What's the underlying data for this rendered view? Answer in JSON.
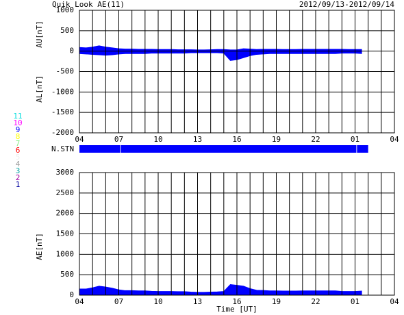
{
  "header": {
    "title": "Quik Look AE(11)",
    "date_range": "2012/09/13-2012/09/14"
  },
  "station_legend": [
    {
      "label": "11",
      "color": "#00dddd"
    },
    {
      "label": "10",
      "color": "#ff00ff"
    },
    {
      "label": "9",
      "color": "#0000ff"
    },
    {
      "label": "8",
      "color": "#ffff00"
    },
    {
      "label": "7",
      "color": "#88ee88"
    },
    {
      "label": "6",
      "color": "#ff0000"
    },
    {
      "label": "5",
      "color": "#eeeeee"
    },
    {
      "label": "4",
      "color": "#a0a0a0"
    },
    {
      "label": "3",
      "color": "#00a0a0"
    },
    {
      "label": "2",
      "color": "#a000a0"
    },
    {
      "label": "1",
      "color": "#0000a0"
    }
  ],
  "station_bar": {
    "label": "N.STN",
    "color": "#0000ff",
    "segments": [
      [
        4,
        7.1
      ],
      [
        7.15,
        25.1
      ],
      [
        25.15,
        26
      ]
    ]
  },
  "chart_data": [
    {
      "type": "area",
      "y_labels": [
        "AU[nT]",
        "AL[nT]"
      ],
      "x": [
        4,
        4.5,
        5,
        5.5,
        6,
        6.5,
        7,
        7.5,
        8,
        8.5,
        9,
        9.5,
        10,
        10.5,
        11,
        11.5,
        12,
        12.5,
        13,
        13.5,
        14,
        14.5,
        15,
        15.5,
        16,
        16.5,
        17,
        17.5,
        18,
        18.5,
        19,
        19.5,
        20,
        20.5,
        21,
        21.5,
        22,
        22.5,
        23,
        23.5,
        24,
        24.5,
        25,
        25.5
      ],
      "series": [
        {
          "color": "#0000ff",
          "values": [
            90,
            80,
            100,
            130,
            100,
            80,
            60,
            50,
            50,
            45,
            45,
            45,
            40,
            40,
            40,
            35,
            35,
            35,
            30,
            30,
            35,
            40,
            40,
            30,
            30,
            60,
            50,
            40,
            45,
            45,
            45,
            40,
            40,
            40,
            45,
            45,
            45,
            45,
            45,
            45,
            45,
            40,
            40,
            40
          ]
        },
        {
          "color": "#0000ff",
          "values": [
            -60,
            -70,
            -80,
            -90,
            -100,
            -90,
            -70,
            -60,
            -60,
            -60,
            -60,
            -50,
            -50,
            -50,
            -50,
            -50,
            -50,
            -40,
            -40,
            -40,
            -40,
            -40,
            -50,
            -230,
            -210,
            -160,
            -110,
            -80,
            -70,
            -60,
            -60,
            -60,
            -60,
            -60,
            -60,
            -60,
            -60,
            -60,
            -60,
            -60,
            -50,
            -50,
            -50,
            -60
          ]
        }
      ],
      "xlim": [
        4,
        28
      ],
      "xticks": [
        {
          "value": 4,
          "label": "04"
        },
        {
          "value": 7,
          "label": "07"
        },
        {
          "value": 10,
          "label": "10"
        },
        13,
        16,
        19,
        22,
        {
          "value": 25,
          "label": "01"
        },
        {
          "value": 28,
          "label": "04"
        }
      ],
      "ylim": [
        -2000,
        1000
      ],
      "yticks": [
        1000,
        500,
        0,
        -500,
        -1000,
        -1500,
        -2000
      ],
      "grid": true,
      "xgrid_step": 1
    },
    {
      "type": "area",
      "y_labels": [
        "AE[nT]"
      ],
      "xlabel": "Time [UT]",
      "x": [
        4,
        4.5,
        5,
        5.5,
        6,
        6.5,
        7,
        7.5,
        8,
        8.5,
        9,
        9.5,
        10,
        10.5,
        11,
        11.5,
        12,
        12.5,
        13,
        13.5,
        14,
        14.5,
        15,
        15.5,
        16,
        16.5,
        17,
        17.5,
        18,
        18.5,
        19,
        19.5,
        20,
        20.5,
        21,
        21.5,
        22,
        22.5,
        23,
        23.5,
        24,
        24.5,
        25,
        25.5
      ],
      "series": [
        {
          "color": "#0000ff",
          "values": [
            150,
            150,
            180,
            220,
            200,
            170,
            130,
            110,
            110,
            105,
            105,
            95,
            90,
            90,
            90,
            85,
            85,
            75,
            70,
            70,
            75,
            80,
            90,
            260,
            240,
            220,
            160,
            120,
            115,
            105,
            105,
            100,
            100,
            100,
            105,
            105,
            105,
            105,
            105,
            105,
            90,
            90,
            90,
            100
          ]
        }
      ],
      "xlim": [
        4,
        28
      ],
      "xticks": [
        {
          "value": 4,
          "label": "04"
        },
        {
          "value": 7,
          "label": "07"
        },
        {
          "value": 10,
          "label": "10"
        },
        13,
        16,
        19,
        22,
        {
          "value": 25,
          "label": "01"
        },
        {
          "value": 28,
          "label": "04"
        }
      ],
      "ylim": [
        0,
        3000
      ],
      "yticks": [
        3000,
        2500,
        2000,
        1500,
        1000,
        500,
        0
      ],
      "grid": true,
      "xgrid_step": 1
    }
  ]
}
